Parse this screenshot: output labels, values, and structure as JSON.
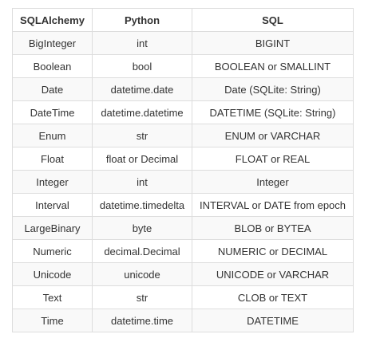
{
  "table": {
    "headers": [
      "SQLAlchemy",
      "Python",
      "SQL"
    ],
    "rows": [
      [
        "BigInteger",
        "int",
        "BIGINT"
      ],
      [
        "Boolean",
        "bool",
        "BOOLEAN or SMALLINT"
      ],
      [
        "Date",
        "datetime.date",
        "Date (SQLite: String)"
      ],
      [
        "DateTime",
        "datetime.datetime",
        "DATETIME (SQLite: String)"
      ],
      [
        "Enum",
        "str",
        "ENUM or VARCHAR"
      ],
      [
        "Float",
        "float or Decimal",
        "FLOAT or REAL"
      ],
      [
        "Integer",
        "int",
        "Integer"
      ],
      [
        "Interval",
        "datetime.timedelta",
        "INTERVAL or DATE from epoch"
      ],
      [
        "LargeBinary",
        "byte",
        "BLOB or BYTEA"
      ],
      [
        "Numeric",
        "decimal.Decimal",
        "NUMERIC or DECIMAL"
      ],
      [
        "Unicode",
        "unicode",
        "UNICODE or VARCHAR"
      ],
      [
        "Text",
        "str",
        "CLOB or TEXT"
      ],
      [
        "Time",
        "datetime.time",
        "DATETIME"
      ]
    ]
  }
}
